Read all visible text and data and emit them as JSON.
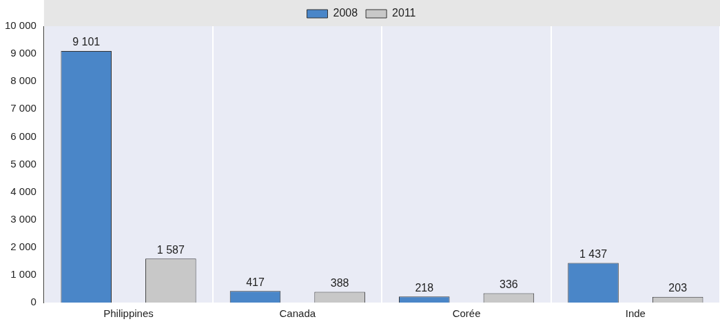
{
  "chart_data": {
    "type": "bar",
    "categories": [
      "Philippines",
      "Canada",
      "Corée",
      "Inde"
    ],
    "series": [
      {
        "name": "2008",
        "color": "#4a86c8",
        "values": [
          9101,
          417,
          218,
          1437
        ],
        "value_labels": [
          "9 101",
          "417",
          "218",
          "1 437"
        ]
      },
      {
        "name": "2011",
        "color": "#c8c8c8",
        "values": [
          1587,
          388,
          336,
          203
        ],
        "value_labels": [
          "1 587",
          "388",
          "336",
          "203"
        ]
      }
    ],
    "ylim": [
      0,
      10000
    ],
    "yticks": [
      {
        "value": 0,
        "label": "0"
      },
      {
        "value": 1000,
        "label": "1 000"
      },
      {
        "value": 2000,
        "label": "2 000"
      },
      {
        "value": 3000,
        "label": "3 000"
      },
      {
        "value": 4000,
        "label": "4 000"
      },
      {
        "value": 5000,
        "label": "5 000"
      },
      {
        "value": 6000,
        "label": "6 000"
      },
      {
        "value": 7000,
        "label": "7 000"
      },
      {
        "value": 8000,
        "label": "8 000"
      },
      {
        "value": 9000,
        "label": "9 000"
      },
      {
        "value": 10000,
        "label": "10 000"
      }
    ],
    "grid": "x",
    "legend": "top"
  }
}
